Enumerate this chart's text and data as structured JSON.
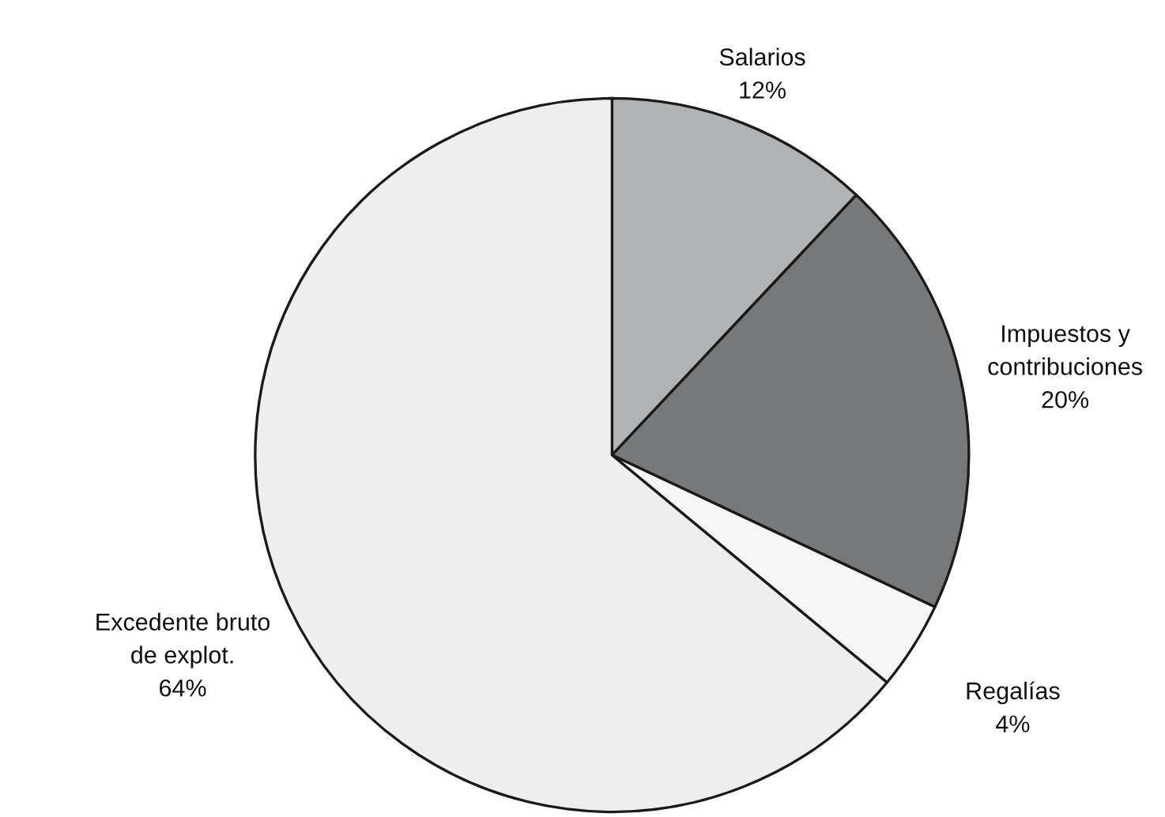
{
  "chart_data": {
    "type": "pie",
    "categories": [
      "Salarios",
      "Impuestos y\ncontribuciones",
      "Regalías",
      "Excedente bruto\nde explot."
    ],
    "values": [
      12,
      20,
      4,
      64
    ],
    "value_labels": [
      "12%",
      "20%",
      "4%",
      "64%"
    ],
    "colors": [
      "#b1b2b4",
      "#77787a",
      "#f6f6f6",
      "#eeeeee"
    ]
  }
}
